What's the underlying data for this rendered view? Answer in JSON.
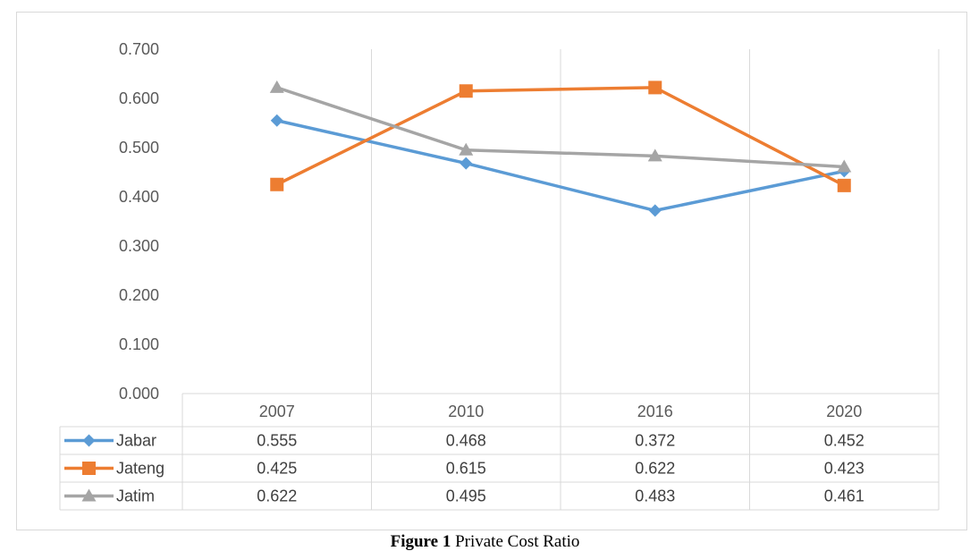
{
  "chart_data": {
    "type": "line",
    "categories": [
      "2007",
      "2010",
      "2016",
      "2020"
    ],
    "series": [
      {
        "name": "Jabar",
        "values": [
          0.555,
          0.468,
          0.372,
          0.452
        ],
        "color": "#5b9bd5",
        "marker": "diamond",
        "labels": [
          "0.555",
          "0.468",
          "0.372",
          "0.452"
        ]
      },
      {
        "name": "Jateng",
        "values": [
          0.425,
          0.615,
          0.622,
          0.423
        ],
        "color": "#ed7d31",
        "marker": "square",
        "labels": [
          "0.425",
          "0.615",
          "0.622",
          "0.423"
        ]
      },
      {
        "name": "Jatim",
        "values": [
          0.622,
          0.495,
          0.483,
          0.461
        ],
        "color": "#a5a5a5",
        "marker": "triangle",
        "labels": [
          "0.622",
          "0.495",
          "0.483",
          "0.461"
        ]
      }
    ],
    "ylim": [
      0,
      0.7
    ],
    "y_ticks": [
      "0.000",
      "0.100",
      "0.200",
      "0.300",
      "0.400",
      "0.500",
      "0.600",
      "0.700"
    ],
    "grid": "vertical",
    "legend": "data table below chart"
  },
  "caption": {
    "number": "Figure 1",
    "text": "Private Cost Ratio"
  }
}
